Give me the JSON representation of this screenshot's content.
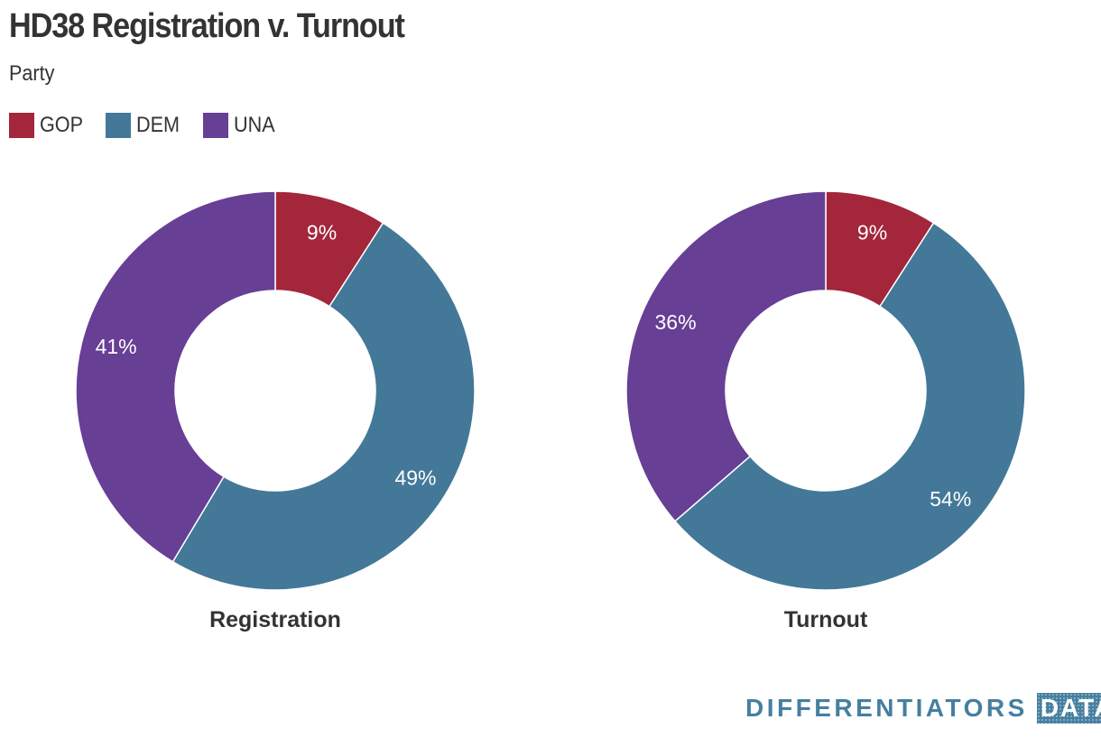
{
  "title": "HD38 Registration v. Turnout",
  "subtitle": "Party",
  "legend": [
    {
      "label": "GOP",
      "color": "#a3263a"
    },
    {
      "label": "DEM",
      "color": "#437898"
    },
    {
      "label": "UNA",
      "color": "#673f95"
    }
  ],
  "chart_data": [
    {
      "type": "pie",
      "title": "Registration",
      "categories": [
        "GOP",
        "DEM",
        "UNA"
      ],
      "values": [
        9,
        49,
        41
      ],
      "labels": [
        "9%",
        "49%",
        "41%"
      ],
      "colors": [
        "#a3263a",
        "#437898",
        "#673f95"
      ],
      "legend_position": "top-left"
    },
    {
      "type": "pie",
      "title": "Turnout",
      "categories": [
        "GOP",
        "DEM",
        "UNA"
      ],
      "values": [
        9,
        54,
        36
      ],
      "labels": [
        "9%",
        "54%",
        "36%"
      ],
      "colors": [
        "#a3263a",
        "#437898",
        "#673f95"
      ],
      "legend_position": "top-left"
    }
  ],
  "branding": {
    "logo_text": "DIFFERENTIATORS",
    "logo_box": "DATA"
  }
}
